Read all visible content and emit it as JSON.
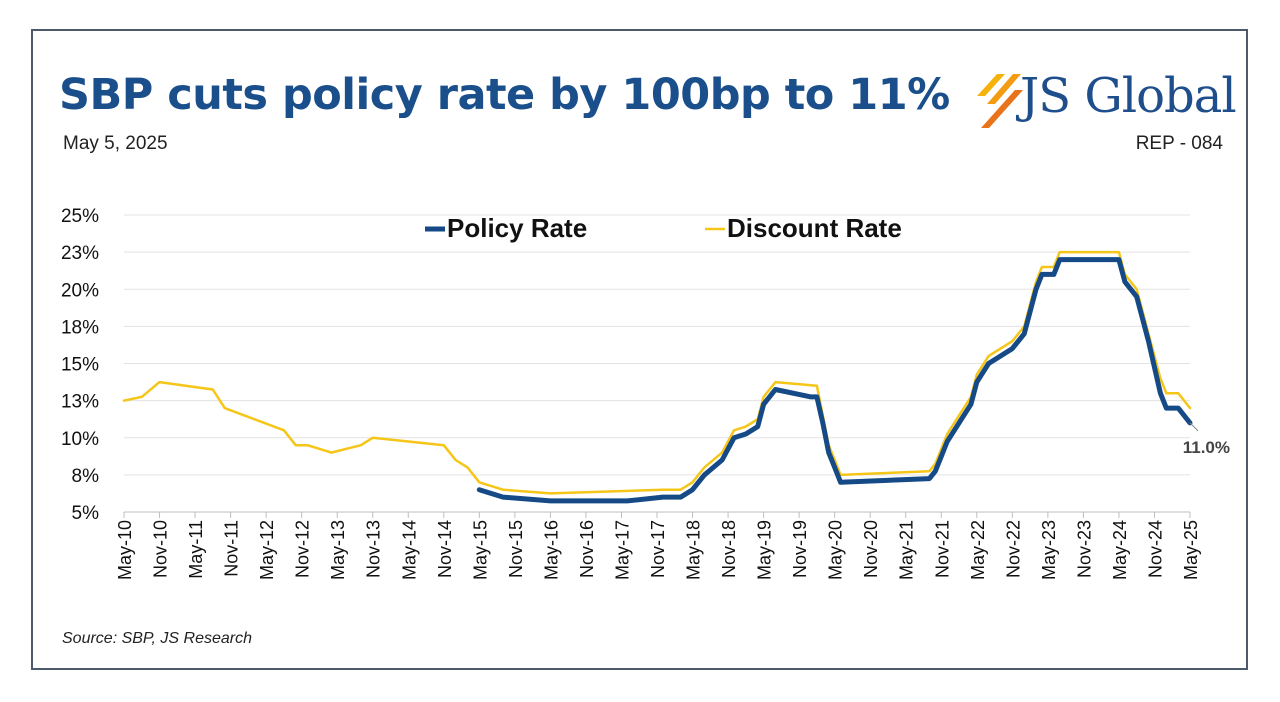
{
  "header": {
    "title": "SBP cuts policy rate by 100bp to 11%",
    "date": "May 5, 2025",
    "report_id": "REP - 084",
    "logo_text": "JS Global"
  },
  "footer": {
    "source": "Source: SBP, JS Research"
  },
  "colors": {
    "policy": "#154a87",
    "discount": "#f5c518",
    "title": "#1a4f8b",
    "grid": "#e3e3e3"
  },
  "chart_data": {
    "type": "line",
    "legend_position": "top",
    "grid": true,
    "y_tick_labels": [
      "5%",
      "8%",
      "10%",
      "13%",
      "15%",
      "18%",
      "20%",
      "23%",
      "25%"
    ],
    "y_tick_values": [
      5,
      7.5,
      10,
      12.5,
      15,
      17.5,
      20,
      22.5,
      25
    ],
    "ylim": [
      5,
      25
    ],
    "x_tick_labels": [
      "May-10",
      "Nov-10",
      "May-11",
      "Nov-11",
      "May-12",
      "Nov-12",
      "May-13",
      "Nov-13",
      "May-14",
      "Nov-14",
      "May-15",
      "Nov-15",
      "May-16",
      "Nov-16",
      "May-17",
      "Nov-17",
      "May-18",
      "Nov-18",
      "May-19",
      "Nov-19",
      "May-20",
      "Nov-20",
      "May-21",
      "Nov-21",
      "May-22",
      "Nov-22",
      "May-23",
      "Nov-23",
      "May-24",
      "Nov-24",
      "May-25"
    ],
    "end_annotation": "11.0%",
    "series": [
      {
        "name": "Policy Rate",
        "points": [
          [
            "2015-05",
            6.5
          ],
          [
            "2015-09",
            6.0
          ],
          [
            "2016-05",
            5.75
          ],
          [
            "2017-06",
            5.75
          ],
          [
            "2017-12",
            6.0
          ],
          [
            "2018-03",
            6.0
          ],
          [
            "2018-05",
            6.5
          ],
          [
            "2018-07",
            7.5
          ],
          [
            "2018-10",
            8.5
          ],
          [
            "2018-12",
            10.0
          ],
          [
            "2019-02",
            10.25
          ],
          [
            "2019-04",
            10.75
          ],
          [
            "2019-05",
            12.25
          ],
          [
            "2019-07",
            13.25
          ],
          [
            "2020-01",
            12.75
          ],
          [
            "2020-02",
            12.75
          ],
          [
            "2020-03",
            11.0
          ],
          [
            "2020-04",
            9.0
          ],
          [
            "2020-05",
            8.0
          ],
          [
            "2020-06",
            7.0
          ],
          [
            "2021-09",
            7.25
          ],
          [
            "2021-10",
            7.75
          ],
          [
            "2021-11",
            8.75
          ],
          [
            "2021-12",
            9.75
          ],
          [
            "2022-04",
            12.25
          ],
          [
            "2022-05",
            13.75
          ],
          [
            "2022-07",
            15.0
          ],
          [
            "2022-11",
            16.0
          ],
          [
            "2023-01",
            17.0
          ],
          [
            "2023-03",
            20.0
          ],
          [
            "2023-04",
            21.0
          ],
          [
            "2023-06",
            21.0
          ],
          [
            "2023-07",
            22.0
          ],
          [
            "2024-05",
            22.0
          ],
          [
            "2024-06",
            20.5
          ],
          [
            "2024-08",
            19.5
          ],
          [
            "2024-10",
            16.5
          ],
          [
            "2024-12",
            13.0
          ],
          [
            "2025-01",
            12.0
          ],
          [
            "2025-03",
            12.0
          ],
          [
            "2025-05",
            11.0
          ]
        ]
      },
      {
        "name": "Discount Rate",
        "points": [
          [
            "2010-05",
            12.5
          ],
          [
            "2010-08",
            12.75
          ],
          [
            "2010-11",
            13.75
          ],
          [
            "2011-08",
            13.25
          ],
          [
            "2011-10",
            12.0
          ],
          [
            "2012-08",
            10.5
          ],
          [
            "2012-10",
            9.5
          ],
          [
            "2012-12",
            9.5
          ],
          [
            "2013-04",
            9.0
          ],
          [
            "2013-09",
            9.5
          ],
          [
            "2013-11",
            10.0
          ],
          [
            "2014-11",
            9.5
          ],
          [
            "2015-01",
            8.5
          ],
          [
            "2015-03",
            8.0
          ],
          [
            "2015-05",
            7.0
          ],
          [
            "2015-09",
            6.5
          ],
          [
            "2016-05",
            6.25
          ],
          [
            "2017-12",
            6.5
          ],
          [
            "2018-03",
            6.5
          ],
          [
            "2018-05",
            7.0
          ],
          [
            "2018-07",
            8.0
          ],
          [
            "2018-10",
            9.0
          ],
          [
            "2018-12",
            10.5
          ],
          [
            "2019-02",
            10.75
          ],
          [
            "2019-04",
            11.25
          ],
          [
            "2019-05",
            12.75
          ],
          [
            "2019-07",
            13.75
          ],
          [
            "2020-02",
            13.5
          ],
          [
            "2020-03",
            11.5
          ],
          [
            "2020-04",
            9.5
          ],
          [
            "2020-05",
            8.5
          ],
          [
            "2020-06",
            7.5
          ],
          [
            "2021-09",
            7.75
          ],
          [
            "2021-10",
            8.25
          ],
          [
            "2021-11",
            9.25
          ],
          [
            "2021-12",
            10.25
          ],
          [
            "2022-04",
            12.75
          ],
          [
            "2022-05",
            14.25
          ],
          [
            "2022-07",
            15.5
          ],
          [
            "2022-11",
            16.5
          ],
          [
            "2023-01",
            17.5
          ],
          [
            "2023-03",
            20.5
          ],
          [
            "2023-04",
            21.5
          ],
          [
            "2023-06",
            21.5
          ],
          [
            "2023-07",
            22.5
          ],
          [
            "2024-05",
            22.5
          ],
          [
            "2024-06",
            21.0
          ],
          [
            "2024-08",
            20.0
          ],
          [
            "2024-10",
            17.0
          ],
          [
            "2024-12",
            14.0
          ],
          [
            "2025-01",
            13.0
          ],
          [
            "2025-03",
            13.0
          ],
          [
            "2025-05",
            12.0
          ]
        ]
      }
    ]
  }
}
